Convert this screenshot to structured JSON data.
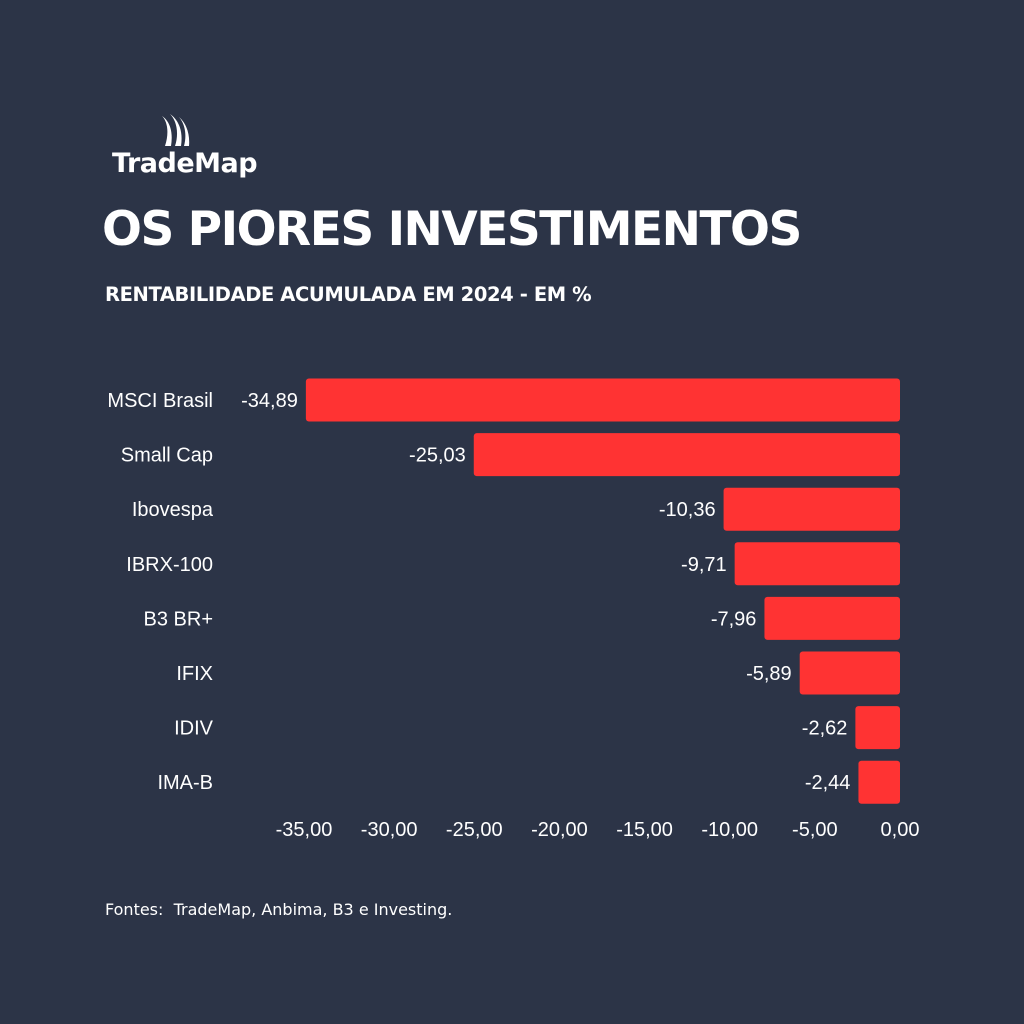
{
  "brand": {
    "name": "TradeMap",
    "logo_icon": "sail-icon"
  },
  "header": {
    "title": "OS PIORES INVESTIMENTOS",
    "subtitle": "RENTABILIDADE ACUMULADA EM 2024 - EM %"
  },
  "colors": {
    "background": "#2c3447",
    "bar": "#ff3333",
    "text": "#ffffff"
  },
  "chart_data": {
    "type": "bar",
    "orientation": "horizontal",
    "categories": [
      "MSCI Brasil",
      "Small Cap",
      "Ibovespa",
      "IBRX-100",
      "B3 BR+",
      "IFIX",
      "IDIV",
      "IMA-B"
    ],
    "values": [
      -34.89,
      -25.03,
      -10.36,
      -9.71,
      -7.96,
      -5.89,
      -2.62,
      -2.44
    ],
    "value_labels": [
      "-34,89",
      "-25,03",
      "-10,36",
      "-9,71",
      "-7,96",
      "-5,89",
      "-2,62",
      "-2,44"
    ],
    "x_ticks": [
      -35,
      -30,
      -25,
      -20,
      -15,
      -10,
      -5,
      0
    ],
    "x_tick_labels": [
      "-35,00",
      "-30,00",
      "-25,00",
      "-20,00",
      "-15,00",
      "-10,00",
      "-5,00",
      "0,00"
    ],
    "xlim": [
      -35,
      0
    ],
    "grid": false,
    "legend": false
  },
  "footer": {
    "source": "Fontes:  TradeMap, Anbima, B3 e Investing."
  }
}
